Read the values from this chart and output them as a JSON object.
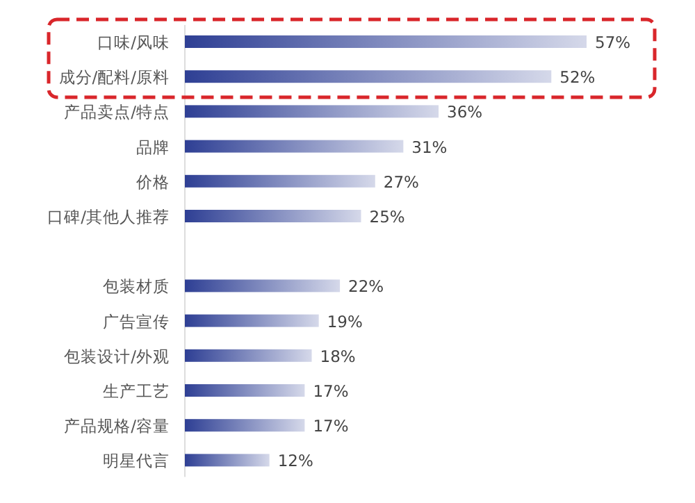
{
  "chart_data": {
    "type": "bar",
    "orientation": "horizontal",
    "categories": [
      "口味/风味",
      "成分/配料/原料",
      "产品卖点/特点",
      "品牌",
      "价格",
      "口碑/其他人推荐",
      null,
      "包装材质",
      "广告宣传",
      "包装设计/外观",
      "生产工艺",
      "产品规格/容量",
      "明星代言"
    ],
    "values": [
      57,
      52,
      36,
      31,
      27,
      25,
      null,
      22,
      19,
      18,
      17,
      17,
      12
    ],
    "value_labels": [
      "57%",
      "52%",
      "36%",
      "31%",
      "27%",
      "25%",
      null,
      "22%",
      "19%",
      "18%",
      "17%",
      "17%",
      "12%"
    ],
    "color": "#2e3f94"
  }
}
